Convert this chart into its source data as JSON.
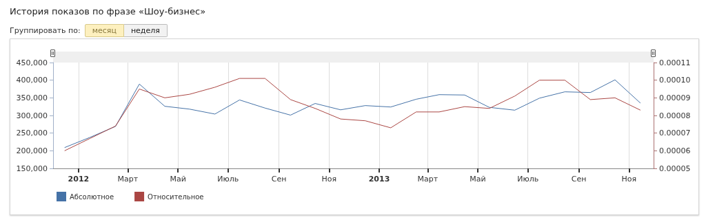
{
  "chart_data": {
    "type": "line",
    "title": "История показов по фразе «Шоу-бизнес»",
    "annotations": [
      "Группировать по:",
      "месяц",
      "неделя"
    ],
    "x": [
      "2011-12-15",
      "2012-01-15",
      "2012-02-15",
      "2012-03-15",
      "2012-04-15",
      "2012-05-15",
      "2012-06-15",
      "2012-07-15",
      "2012-08-15",
      "2012-09-15",
      "2012-10-15",
      "2012-11-15",
      "2012-12-15",
      "2013-01-15",
      "2013-02-15",
      "2013-03-15",
      "2013-04-15",
      "2013-05-15",
      "2013-06-15",
      "2013-07-15",
      "2013-08-15",
      "2013-09-15",
      "2013-10-15",
      "2013-11-15"
    ],
    "series": [
      {
        "name": "Абсолютное",
        "color": "#4572a7",
        "values": [
          209000,
          238000,
          269000,
          389000,
          326000,
          318000,
          304000,
          344000,
          321000,
          301000,
          334000,
          316000,
          328000,
          324000,
          346000,
          359000,
          358000,
          323000,
          315000,
          349000,
          367000,
          365000,
          401000,
          335000
        ]
      },
      {
        "name": "Относительное",
        "color": "#aa4643",
        "axis": "y2",
        "values": [
          6e-05,
          6.7e-05,
          7.4e-05,
          9.5e-05,
          9e-05,
          9.2e-05,
          9.6e-05,
          0.000101,
          0.000101,
          8.9e-05,
          8.4e-05,
          7.8e-05,
          7.7e-05,
          7.3e-05,
          8.2e-05,
          8.2e-05,
          8.5e-05,
          8.4e-05,
          9.1e-05,
          0.0001,
          0.0001,
          8.9e-05,
          9e-05,
          8.3e-05
        ]
      }
    ],
    "xlim": [
      "2011-12-01",
      "2013-12-01"
    ],
    "xticks": [
      {
        "value": "2012-01-01",
        "label": "2012"
      },
      {
        "value": "2012-03-01",
        "label": "Март"
      },
      {
        "value": "2012-05-01",
        "label": "Май"
      },
      {
        "value": "2012-07-01",
        "label": "Июль"
      },
      {
        "value": "2012-09-01",
        "label": "Сен"
      },
      {
        "value": "2012-11-01",
        "label": "Ноя"
      },
      {
        "value": "2013-01-01",
        "label": "2013"
      },
      {
        "value": "2013-03-01",
        "label": "Март"
      },
      {
        "value": "2013-05-01",
        "label": "Май"
      },
      {
        "value": "2013-07-01",
        "label": "Июль"
      },
      {
        "value": "2013-09-01",
        "label": "Сен"
      },
      {
        "value": "2013-11-01",
        "label": "Ноя"
      }
    ],
    "ylim": [
      150000,
      450000
    ],
    "yticks": [
      {
        "value": 150000,
        "label": "150,000"
      },
      {
        "value": 200000,
        "label": "200,000"
      },
      {
        "value": 250000,
        "label": "250,000"
      },
      {
        "value": 300000,
        "label": "300,000"
      },
      {
        "value": 350000,
        "label": "350,000"
      },
      {
        "value": 400000,
        "label": "400,000"
      },
      {
        "value": 450000,
        "label": "450,000"
      }
    ],
    "y2lim": [
      5e-05,
      0.00011
    ],
    "y2ticks": [
      {
        "value": 5e-05,
        "label": "0.00005"
      },
      {
        "value": 6e-05,
        "label": "0.00006"
      },
      {
        "value": 7e-05,
        "label": "0.00007"
      },
      {
        "value": 8e-05,
        "label": "0.00008"
      },
      {
        "value": 9e-05,
        "label": "0.00009"
      },
      {
        "value": 0.0001,
        "label": "0.00010"
      },
      {
        "value": 0.00011,
        "label": "0.00011"
      }
    ],
    "grid": "x",
    "legend": "bottom left",
    "marker": "none",
    "line_style": "solid"
  }
}
